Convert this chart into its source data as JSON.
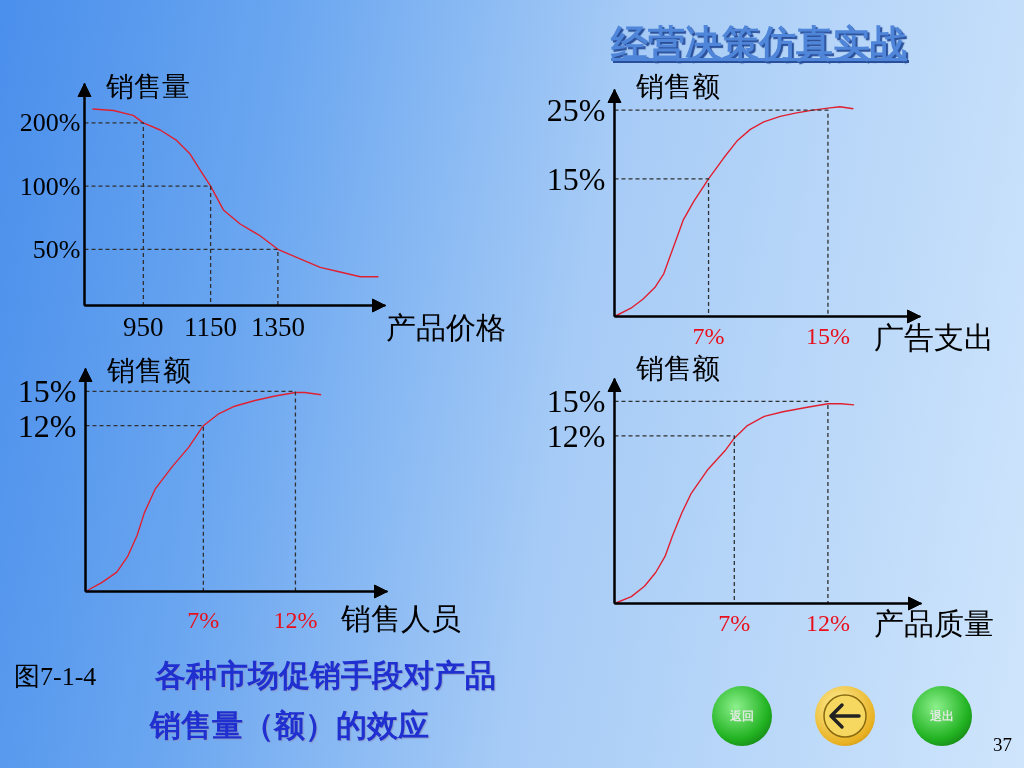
{
  "chart_data": [
    {
      "type": "line",
      "xlabel": "产品价格",
      "ylabel": "销售量",
      "log": "y",
      "xlim": [
        775,
        1670
      ],
      "ylim": [
        27,
        308
      ],
      "xticks": [
        950,
        1150,
        1350
      ],
      "yticks": [
        {
          "value": 50,
          "label": "50%"
        },
        {
          "value": 100,
          "label": "100%"
        },
        {
          "value": 200,
          "label": "200%"
        }
      ],
      "series": [
        {
          "color": "#e02030",
          "line_style": "solid",
          "x": [
            799,
            861,
            920,
            950,
            1000,
            1049,
            1089,
            1119,
            1150,
            1188,
            1238,
            1297,
            1350,
            1416,
            1476,
            1535,
            1595,
            1649
          ],
          "values": [
            233,
            229,
            217,
            200,
            185,
            165,
            142,
            119,
            100,
            77,
            66,
            58,
            50,
            45,
            41,
            39,
            37,
            37
          ]
        },
        {
          "color": "#303030",
          "line_style": "dashed",
          "x": [
            775,
            950,
            950
          ],
          "values": [
            200,
            200,
            27
          ]
        },
        {
          "color": "#303030",
          "line_style": "dashed",
          "x": [
            775,
            1150,
            1150
          ],
          "values": [
            100,
            100,
            27
          ]
        },
        {
          "color": "#303030",
          "line_style": "dashed",
          "x": [
            775,
            1350,
            1350
          ],
          "values": [
            50,
            50,
            27
          ]
        }
      ]
    },
    {
      "type": "line",
      "xlabel": "广告支出",
      "ylabel": "销售额",
      "xlim": [
        0.7,
        21.2
      ],
      "ylim": [
        -5,
        28
      ],
      "xticks": [
        {
          "value": 7,
          "label": "7%"
        },
        {
          "value": 15,
          "label": "15%"
        }
      ],
      "yticks": [
        {
          "value": 15,
          "label": "15%"
        },
        {
          "value": 25,
          "label": "25%"
        }
      ],
      "series": [
        {
          "color": "#e02030",
          "line_style": "solid",
          "x": [
            0.7,
            1.8,
            2.6,
            3.4,
            4.0,
            4.4,
            4.9,
            5.3,
            6.0,
            7,
            8.0,
            8.9,
            9.8,
            10.7,
            11.8,
            12.9,
            14.0,
            15,
            15.8,
            16.7
          ],
          "values": [
            -5,
            -3.8,
            -2.5,
            -0.8,
            1.2,
            3.6,
            6.6,
            9,
            11.7,
            15,
            18,
            20.5,
            22.2,
            23.3,
            24.1,
            24.6,
            25,
            25.3,
            25.5,
            25.2
          ]
        },
        {
          "color": "#303030",
          "line_style": "dashed",
          "x": [
            0.7,
            7,
            7
          ],
          "values": [
            15,
            15,
            -5
          ]
        },
        {
          "color": "#303030",
          "line_style": "dashed",
          "x": [
            0.7,
            15,
            15
          ],
          "values": [
            25,
            25,
            -5
          ]
        }
      ]
    },
    {
      "type": "line",
      "xlabel": "销售人员",
      "ylabel": "销售额",
      "xlim": [
        0.6,
        17.0
      ],
      "ylim": [
        -2.5,
        17.0
      ],
      "xticks": [
        {
          "value": 7,
          "label": "7%"
        },
        {
          "value": 12,
          "label": "12%"
        }
      ],
      "yticks": [
        {
          "value": 12,
          "label": "12%"
        },
        {
          "value": 15,
          "label": "15%"
        }
      ],
      "series": [
        {
          "color": "#e02030",
          "line_style": "solid",
          "x": [
            0.6,
            1.5,
            2.3,
            2.9,
            3.4,
            3.8,
            4.4,
            5.3,
            6.2,
            7,
            7.8,
            8.7,
            9.8,
            10.9,
            12,
            12.5,
            13.4
          ],
          "values": [
            -2.5,
            -1.7,
            -0.8,
            0.6,
            2.4,
            4.4,
            6.5,
            8.4,
            10.1,
            12,
            13.0,
            13.7,
            14.2,
            14.6,
            14.9,
            14.9,
            14.7
          ]
        },
        {
          "color": "#303030",
          "line_style": "dashed",
          "x": [
            0.6,
            7,
            7
          ],
          "values": [
            12,
            12,
            -2.5
          ]
        },
        {
          "color": "#303030",
          "line_style": "dashed",
          "x": [
            0.6,
            12,
            12
          ],
          "values": [
            15,
            15,
            -2.5
          ]
        }
      ]
    },
    {
      "type": "line",
      "xlabel": "产品质量",
      "ylabel": "销售额",
      "xlim": [
        0.6,
        17.0
      ],
      "ylim": [
        -2.6,
        17.0
      ],
      "xticks": [
        {
          "value": 7,
          "label": "7%"
        },
        {
          "value": 12,
          "label": "12%"
        }
      ],
      "yticks": [
        {
          "value": 12,
          "label": "12%"
        },
        {
          "value": 15,
          "label": "15%"
        }
      ],
      "series": [
        {
          "color": "#e02030",
          "line_style": "solid",
          "x": [
            0.6,
            1.5,
            2.2,
            2.8,
            3.3,
            3.7,
            4.2,
            4.7,
            5.6,
            6.5,
            7,
            7.7,
            8.6,
            9.6,
            10.9,
            12,
            12.7,
            13.4
          ],
          "values": [
            -2.6,
            -2.0,
            -1.1,
            0.1,
            1.5,
            3.3,
            5.3,
            7.0,
            9.1,
            10.7,
            11.8,
            12.9,
            13.7,
            14.1,
            14.5,
            14.8,
            14.8,
            14.7
          ]
        },
        {
          "color": "#303030",
          "line_style": "dashed",
          "x": [
            0.6,
            7,
            7
          ],
          "values": [
            12,
            12,
            -2.6
          ]
        },
        {
          "color": "#303030",
          "line_style": "dashed",
          "x": [
            0.6,
            12,
            12
          ],
          "values": [
            15,
            15,
            -2.6
          ]
        }
      ]
    },
    {
      "type": "other",
      "title": "经营决策仿真实战",
      "annotations": [
        "图7-1-4",
        "各种市场促销手段对产品",
        "销售量（额）的效应",
        "返回",
        "退出",
        "37"
      ]
    }
  ]
}
